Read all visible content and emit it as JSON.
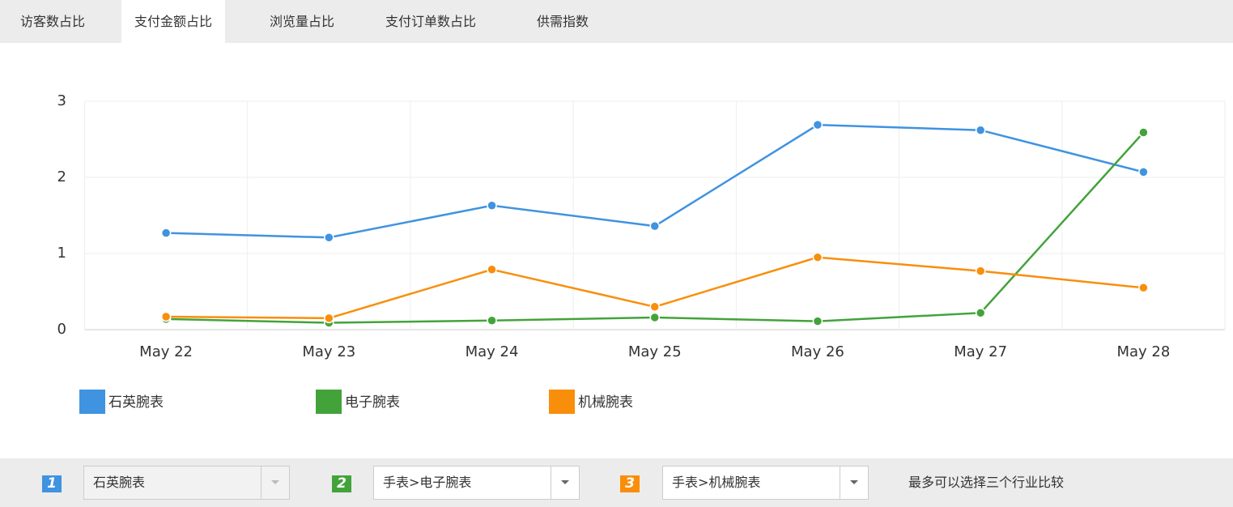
{
  "tabs": [
    "访客数占比",
    "支付金额占比",
    "浏览量占比",
    "支付订单数占比",
    "供需指数"
  ],
  "active_tab": 1,
  "chart_data": {
    "type": "line",
    "categories": [
      "May 22",
      "May 23",
      "May 24",
      "May 25",
      "May 26",
      "May 27",
      "May 28"
    ],
    "series": [
      {
        "name": "石英腕表",
        "color": "#3f93e0",
        "values": [
          1.27,
          1.21,
          1.63,
          1.36,
          2.69,
          2.62,
          2.07
        ]
      },
      {
        "name": "电子腕表",
        "color": "#43a33b",
        "values": [
          0.14,
          0.09,
          0.12,
          0.16,
          0.11,
          0.22,
          2.59
        ]
      },
      {
        "name": "机械腕表",
        "color": "#f98e0b",
        "values": [
          0.17,
          0.15,
          0.79,
          0.3,
          0.95,
          0.77,
          0.55
        ]
      }
    ],
    "ylim": [
      0,
      3
    ],
    "yticks": [
      0,
      1,
      2,
      3
    ],
    "grid": true
  },
  "selectors": [
    {
      "number": "1",
      "color": "#3f93e0",
      "value": "石英腕表",
      "disabled": true
    },
    {
      "number": "2",
      "color": "#43a33b",
      "value": "手表>电子腕表",
      "disabled": false
    },
    {
      "number": "3",
      "color": "#f98e0b",
      "value": "手表>机械腕表",
      "disabled": false
    }
  ],
  "note": "最多可以选择三个行业比较"
}
